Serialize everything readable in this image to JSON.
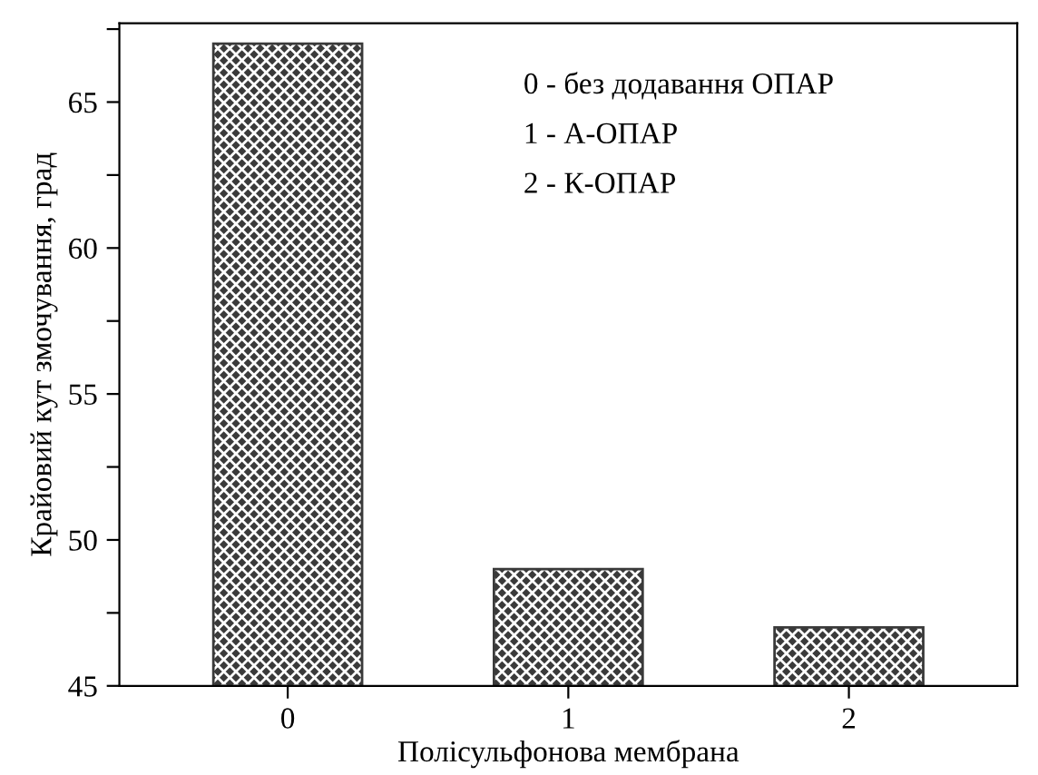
{
  "chart_data": {
    "type": "bar",
    "categories": [
      "0",
      "1",
      "2"
    ],
    "values": [
      67,
      49,
      47
    ],
    "color": "#3a3a3a",
    "xlabel": "Полісульфонова мембрана",
    "ylabel": "Крайовий кут змочування, град",
    "ylim": [
      45,
      67.7
    ],
    "yticks": [
      45,
      {
        "value": 47.5,
        "label": null
      },
      50,
      {
        "value": 52.5,
        "label": null
      },
      55,
      {
        "value": 57.5,
        "label": null
      },
      60,
      {
        "value": 62.5,
        "label": null
      },
      65,
      {
        "value": 67.5,
        "label": null
      }
    ],
    "annotations": [
      "0 - без додавання ОПАР",
      "1 - А-ОПАР",
      "2 - К-ОПАР"
    ],
    "grid": false
  }
}
